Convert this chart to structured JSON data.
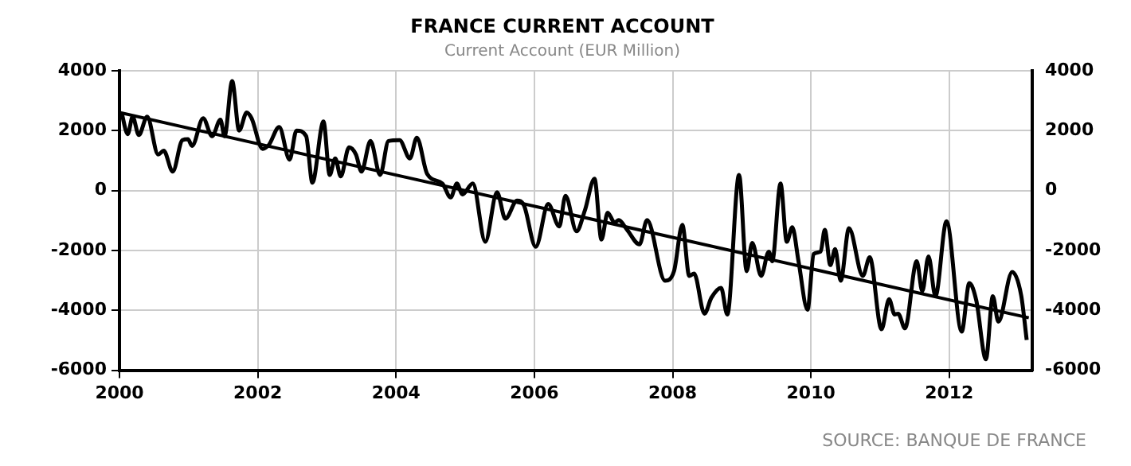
{
  "chart_data": {
    "type": "line",
    "title": "FRANCE CURRENT ACCOUNT",
    "subtitle": "Current Account (EUR Million)",
    "annotations": [
      "SOURCE: BANQUE DE FRANCE"
    ],
    "xlim": [
      2000,
      2013.2
    ],
    "xticks": [
      2000,
      2002,
      2004,
      2006,
      2008,
      2010,
      2012
    ],
    "ylim": [
      -6000,
      4000
    ],
    "yticks": [
      -6000,
      -4000,
      -2000,
      0,
      2000,
      4000
    ],
    "y2lim": [
      -6000,
      4000
    ],
    "y2ticks": [
      -6000,
      -4000,
      -2000,
      0,
      2000,
      4000
    ],
    "grid": true,
    "legend": false,
    "series": [
      {
        "color": "#000000",
        "x": [
          2000.03,
          2000.12,
          2000.19,
          2000.28,
          2000.4,
          2000.56,
          2000.64,
          2000.77,
          2000.91,
          2000.99,
          2001.05,
          2001.21,
          2001.34,
          2001.46,
          2001.52,
          2001.63,
          2001.73,
          2001.84,
          2001.91,
          2002.07,
          2002.16,
          2002.31,
          2002.46,
          2002.56,
          2002.7,
          2002.79,
          2002.95,
          2003.04,
          2003.12,
          2003.2,
          2003.32,
          2003.42,
          2003.5,
          2003.63,
          2003.77,
          2003.89,
          2004.05,
          2004.2,
          2004.3,
          2004.45,
          2004.67,
          2004.79,
          2004.88,
          2004.96,
          2005.11,
          2005.29,
          2005.46,
          2005.58,
          2005.75,
          2005.85,
          2006.02,
          2006.2,
          2006.36,
          2006.45,
          2006.61,
          2006.73,
          2006.87,
          2006.97,
          2007.06,
          2007.16,
          2007.22,
          2007.34,
          2007.52,
          2007.63,
          2007.89,
          2008.02,
          2008.14,
          2008.24,
          2008.31,
          2008.46,
          2008.56,
          2008.7,
          2008.79,
          2008.96,
          2009.07,
          2009.15,
          2009.28,
          2009.39,
          2009.44,
          2009.56,
          2009.65,
          2009.73,
          2009.82,
          2009.95,
          2010.04,
          2010.14,
          2010.2,
          2010.28,
          2010.35,
          2010.43,
          2010.55,
          2010.75,
          2010.85,
          2011.02,
          2011.13,
          2011.21,
          2011.26,
          2011.36,
          2011.53,
          2011.61,
          2011.7,
          2011.8,
          2011.96,
          2012.18,
          2012.29,
          2012.39,
          2012.53,
          2012.63,
          2012.71,
          2012.91,
          2013.04,
          2013.12
        ],
        "values": [
          2600,
          1880,
          2460,
          1850,
          2460,
          1200,
          1330,
          630,
          1680,
          1710,
          1490,
          2410,
          1810,
          2360,
          1810,
          3650,
          2000,
          2600,
          2410,
          1390,
          1520,
          2120,
          1030,
          2000,
          1810,
          260,
          2300,
          520,
          1070,
          470,
          1440,
          1200,
          630,
          1650,
          520,
          1650,
          1680,
          1070,
          1760,
          550,
          230,
          -230,
          230,
          -130,
          230,
          -1710,
          -60,
          -940,
          -340,
          -500,
          -1880,
          -450,
          -1200,
          -180,
          -1360,
          -670,
          390,
          -1640,
          -740,
          -1070,
          -990,
          -1310,
          -1800,
          -990,
          -3010,
          -2690,
          -1150,
          -2850,
          -2770,
          -4110,
          -3580,
          -3250,
          -4140,
          520,
          -2690,
          -1750,
          -2850,
          -2040,
          -2360,
          230,
          -1710,
          -1230,
          -2360,
          -3980,
          -2120,
          -2040,
          -1310,
          -2490,
          -1960,
          -3010,
          -1260,
          -2850,
          -2230,
          -4630,
          -3630,
          -4140,
          -4110,
          -4600,
          -2360,
          -3360,
          -2200,
          -3530,
          -1030,
          -4710,
          -3090,
          -3660,
          -5630,
          -3530,
          -4380,
          -2720,
          -3500,
          -4990
        ]
      },
      {
        "type": "line",
        "color": "#000000",
        "x": [
          2000,
          2013.15
        ],
        "values": [
          2600,
          -4250
        ]
      }
    ]
  }
}
